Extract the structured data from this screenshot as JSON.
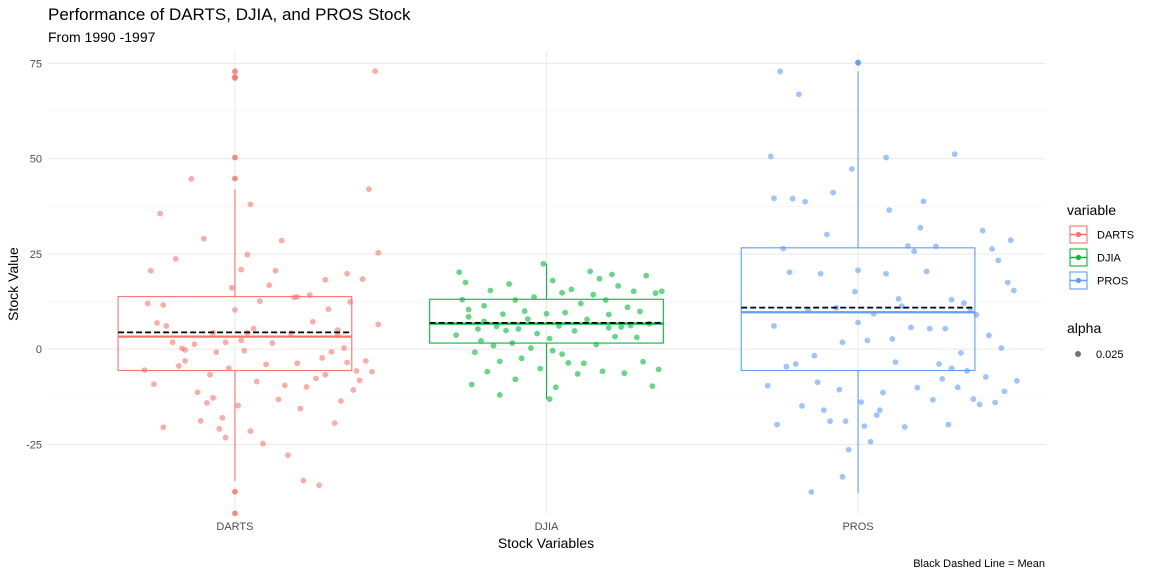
{
  "chart_data": {
    "type": "boxplot",
    "title": "Performance of DARTS, DJIA, and PROS Stock",
    "subtitle": "From 1990 -1997",
    "xlabel": "Stock Variables",
    "ylabel": "Stock Value",
    "caption": "Black Dashed Line = Mean",
    "ylim": [
      -43,
      78
    ],
    "yticks": [
      -25,
      0,
      25,
      50,
      75
    ],
    "ytick_labels": [
      "-25",
      "0",
      "25",
      "50",
      "75"
    ],
    "categories": [
      "DARTS",
      "DJIA",
      "PROS"
    ],
    "grid": true,
    "legend": {
      "position": "right",
      "color_title": "variable",
      "alpha_title": "alpha",
      "alpha_label": "0.025"
    },
    "series": [
      {
        "name": "DARTS",
        "color": "#F8766D",
        "box": {
          "whisker_low": -34.6,
          "q1": -5.6,
          "median": 3.3,
          "q3": 13.8,
          "whisker_high": 42.0
        },
        "mean": 4.4,
        "outliers": [
          -37.4,
          -43.1,
          44.8,
          50.3,
          71.2,
          71.4,
          72.9
        ],
        "points": [
          [
            0.71,
            -5.5
          ],
          [
            0.72,
            12.0
          ],
          [
            0.73,
            20.6
          ],
          [
            0.74,
            -9.2
          ],
          [
            0.75,
            6.9
          ],
          [
            0.76,
            35.6
          ],
          [
            0.77,
            -20.5
          ],
          [
            0.77,
            11.6
          ],
          [
            0.78,
            6.1
          ],
          [
            0.8,
            1.8
          ],
          [
            0.81,
            23.7
          ],
          [
            0.82,
            -4.4
          ],
          [
            0.83,
            0.2
          ],
          [
            0.84,
            -0.2
          ],
          [
            0.84,
            -3.1
          ],
          [
            0.86,
            44.7
          ],
          [
            0.87,
            1.3
          ],
          [
            0.88,
            -11.3
          ],
          [
            0.89,
            -18.8
          ],
          [
            0.9,
            29.0
          ],
          [
            0.91,
            -14.1
          ],
          [
            0.92,
            -6.7
          ],
          [
            0.93,
            -12.8
          ],
          [
            0.93,
            4.3
          ],
          [
            0.94,
            -0.8
          ],
          [
            0.95,
            -20.9
          ],
          [
            0.96,
            -18.0
          ],
          [
            0.97,
            -23.2
          ],
          [
            0.98,
            -5.0
          ],
          [
            0.99,
            16.1
          ],
          [
            1.0,
            10.3
          ],
          [
            1.01,
            -14.8
          ],
          [
            1.02,
            2.3
          ],
          [
            1.03,
            -0.4
          ],
          [
            1.04,
            24.8
          ],
          [
            1.05,
            38.0
          ],
          [
            1.05,
            -21.5
          ],
          [
            1.06,
            5.4
          ],
          [
            1.07,
            -8.5
          ],
          [
            1.08,
            12.6
          ],
          [
            1.09,
            -24.8
          ],
          [
            1.1,
            -4.0
          ],
          [
            1.11,
            16.8
          ],
          [
            1.12,
            1.6
          ],
          [
            1.13,
            20.6
          ],
          [
            1.14,
            -13.2
          ],
          [
            1.15,
            28.5
          ],
          [
            1.16,
            -9.5
          ],
          [
            1.17,
            -27.8
          ],
          [
            1.18,
            4.2
          ],
          [
            1.19,
            13.6
          ],
          [
            1.2,
            -3.7
          ],
          [
            1.21,
            -15.6
          ],
          [
            1.22,
            -34.5
          ],
          [
            1.23,
            -9.9
          ],
          [
            1.24,
            14.2
          ],
          [
            1.25,
            7.2
          ],
          [
            1.26,
            -7.7
          ],
          [
            1.27,
            -35.7
          ],
          [
            1.28,
            -2.3
          ],
          [
            1.29,
            18.2
          ],
          [
            1.29,
            -6.7
          ],
          [
            1.3,
            10.5
          ],
          [
            1.31,
            -0.7
          ],
          [
            1.32,
            -19.4
          ],
          [
            1.33,
            5.0
          ],
          [
            1.34,
            -13.6
          ],
          [
            1.35,
            0.3
          ],
          [
            1.36,
            19.8
          ],
          [
            1.36,
            -3.5
          ],
          [
            1.37,
            12.4
          ],
          [
            1.38,
            -10.7
          ],
          [
            1.39,
            -5.7
          ],
          [
            1.4,
            -8.2
          ],
          [
            1.41,
            18.4
          ],
          [
            1.42,
            -3.1
          ],
          [
            1.43,
            42.0
          ],
          [
            1.44,
            -5.9
          ],
          [
            1.45,
            73.0
          ],
          [
            1.46,
            25.3
          ],
          [
            1.46,
            6.5
          ],
          [
            1.04,
            4.3
          ],
          [
            0.97,
            1.8
          ],
          [
            1.2,
            13.7
          ],
          [
            1.02,
            20.9
          ],
          [
            1.33,
            3.6
          ]
        ]
      },
      {
        "name": "DJIA",
        "color": "#00BA38",
        "box": {
          "whisker_low": -13.1,
          "q1": 1.6,
          "median": 6.7,
          "q3": 13.1,
          "whisker_high": 22.4
        },
        "mean": 6.9,
        "outliers": [],
        "points": [
          [
            1.71,
            3.7
          ],
          [
            1.72,
            20.2
          ],
          [
            1.73,
            13.0
          ],
          [
            1.74,
            17.5
          ],
          [
            1.75,
            8.5
          ],
          [
            1.75,
            10.4
          ],
          [
            1.76,
            -9.3
          ],
          [
            1.77,
            -0.8
          ],
          [
            1.78,
            5.3
          ],
          [
            1.79,
            2.2
          ],
          [
            1.8,
            11.4
          ],
          [
            1.8,
            7.3
          ],
          [
            1.81,
            -5.9
          ],
          [
            1.82,
            15.4
          ],
          [
            1.83,
            0.9
          ],
          [
            1.84,
            6.0
          ],
          [
            1.85,
            -3.2
          ],
          [
            1.86,
            9.2
          ],
          [
            1.87,
            4.9
          ],
          [
            1.88,
            17.1
          ],
          [
            1.89,
            1.6
          ],
          [
            1.9,
            12.9
          ],
          [
            1.9,
            -7.9
          ],
          [
            1.91,
            5.3
          ],
          [
            1.92,
            -2.4
          ],
          [
            1.93,
            10.0
          ],
          [
            1.94,
            7.9
          ],
          [
            1.95,
            0.3
          ],
          [
            1.96,
            13.7
          ],
          [
            1.97,
            4.1
          ],
          [
            1.98,
            -5.1
          ],
          [
            1.99,
            22.4
          ],
          [
            2.0,
            9.3
          ],
          [
            2.01,
            2.8
          ],
          [
            2.02,
            -0.4
          ],
          [
            2.03,
            -10.0
          ],
          [
            2.04,
            6.1
          ],
          [
            2.05,
            -1.3
          ],
          [
            2.05,
            14.8
          ],
          [
            2.06,
            9.6
          ],
          [
            2.07,
            -3.6
          ],
          [
            2.08,
            15.7
          ],
          [
            2.09,
            4.8
          ],
          [
            2.1,
            -6.5
          ],
          [
            2.11,
            12.0
          ],
          [
            2.12,
            -3.7
          ],
          [
            2.13,
            7.8
          ],
          [
            2.14,
            20.4
          ],
          [
            2.15,
            14.3
          ],
          [
            2.16,
            1.2
          ],
          [
            2.17,
            18.5
          ],
          [
            2.18,
            -5.8
          ],
          [
            2.19,
            12.9
          ],
          [
            2.2,
            9.1
          ],
          [
            2.2,
            5.6
          ],
          [
            2.21,
            19.6
          ],
          [
            2.22,
            3.3
          ],
          [
            2.23,
            16.6
          ],
          [
            2.24,
            5.8
          ],
          [
            2.25,
            -6.3
          ],
          [
            2.26,
            11.0
          ],
          [
            2.27,
            6.2
          ],
          [
            2.28,
            15.2
          ],
          [
            2.29,
            3.1
          ],
          [
            2.3,
            9.9
          ],
          [
            2.31,
            -3.3
          ],
          [
            2.32,
            19.3
          ],
          [
            2.33,
            6.7
          ],
          [
            2.34,
            -9.7
          ],
          [
            2.35,
            14.7
          ],
          [
            2.36,
            -5.3
          ],
          [
            2.37,
            15.2
          ],
          [
            2.01,
            -13.1
          ],
          [
            1.85,
            -12.0
          ],
          [
            2.02,
            18.0
          ]
        ]
      },
      {
        "name": "PROS",
        "color": "#619CFF",
        "box": {
          "whisker_low": -37.8,
          "q1": -5.6,
          "median": 9.7,
          "q3": 26.6,
          "whisker_high": 72.9
        },
        "mean": 10.9,
        "outliers": [
          75.2,
          75.2
        ],
        "points": [
          [
            2.71,
            -9.6
          ],
          [
            2.72,
            50.6
          ],
          [
            2.73,
            39.6
          ],
          [
            2.73,
            6.1
          ],
          [
            2.74,
            -19.8
          ],
          [
            2.75,
            72.9
          ],
          [
            2.76,
            26.4
          ],
          [
            2.77,
            -4.6
          ],
          [
            2.78,
            20.2
          ],
          [
            2.79,
            39.5
          ],
          [
            2.8,
            -3.9
          ],
          [
            2.81,
            66.9
          ],
          [
            2.82,
            -14.9
          ],
          [
            2.83,
            38.7
          ],
          [
            2.84,
            10.3
          ],
          [
            2.85,
            -37.5
          ],
          [
            2.86,
            -1.7
          ],
          [
            2.87,
            -8.7
          ],
          [
            2.88,
            19.8
          ],
          [
            2.89,
            -16.0
          ],
          [
            2.9,
            30.1
          ],
          [
            2.91,
            -18.9
          ],
          [
            2.92,
            41.1
          ],
          [
            2.93,
            10.9
          ],
          [
            2.94,
            -10.6
          ],
          [
            2.95,
            -33.5
          ],
          [
            2.96,
            -18.9
          ],
          [
            2.97,
            -26.4
          ],
          [
            2.98,
            47.3
          ],
          [
            2.99,
            15.1
          ],
          [
            3.0,
            20.7
          ],
          [
            3.01,
            -13.9
          ],
          [
            3.02,
            -20.2
          ],
          [
            3.03,
            2.3
          ],
          [
            3.04,
            -24.3
          ],
          [
            3.05,
            9.3
          ],
          [
            3.06,
            -17.3
          ],
          [
            3.07,
            -16.0
          ],
          [
            3.08,
            -11.4
          ],
          [
            3.09,
            19.8
          ],
          [
            3.1,
            36.5
          ],
          [
            3.11,
            2.7
          ],
          [
            3.12,
            -3.4
          ],
          [
            3.13,
            13.2
          ],
          [
            3.14,
            11.3
          ],
          [
            3.15,
            -20.4
          ],
          [
            3.16,
            27.1
          ],
          [
            3.17,
            5.7
          ],
          [
            3.18,
            25.7
          ],
          [
            3.19,
            -10.1
          ],
          [
            3.2,
            31.9
          ],
          [
            3.21,
            38.8
          ],
          [
            3.22,
            20.4
          ],
          [
            3.23,
            5.4
          ],
          [
            3.24,
            -13.3
          ],
          [
            3.25,
            27.0
          ],
          [
            3.26,
            -3.9
          ],
          [
            3.27,
            -7.8
          ],
          [
            3.28,
            5.4
          ],
          [
            3.29,
            -19.8
          ],
          [
            3.3,
            -5.0
          ],
          [
            3.31,
            51.2
          ],
          [
            3.32,
            -10.0
          ],
          [
            3.33,
            -1.0
          ],
          [
            3.34,
            12.1
          ],
          [
            3.35,
            -5.7
          ],
          [
            3.36,
            10.5
          ],
          [
            3.37,
            -13.1
          ],
          [
            3.38,
            9.0
          ],
          [
            3.39,
            -14.5
          ],
          [
            3.4,
            31.1
          ],
          [
            3.41,
            -7.3
          ],
          [
            3.42,
            3.6
          ],
          [
            3.43,
            26.3
          ],
          [
            3.44,
            -14.0
          ],
          [
            3.45,
            23.3
          ],
          [
            3.46,
            0.3
          ],
          [
            3.47,
            -11.1
          ],
          [
            3.48,
            17.5
          ],
          [
            3.49,
            28.6
          ],
          [
            3.5,
            15.4
          ],
          [
            3.51,
            -8.3
          ],
          [
            3.09,
            50.3
          ],
          [
            3.0,
            7.0
          ],
          [
            2.95,
            1.8
          ],
          [
            3.3,
            13.0
          ]
        ]
      }
    ]
  }
}
